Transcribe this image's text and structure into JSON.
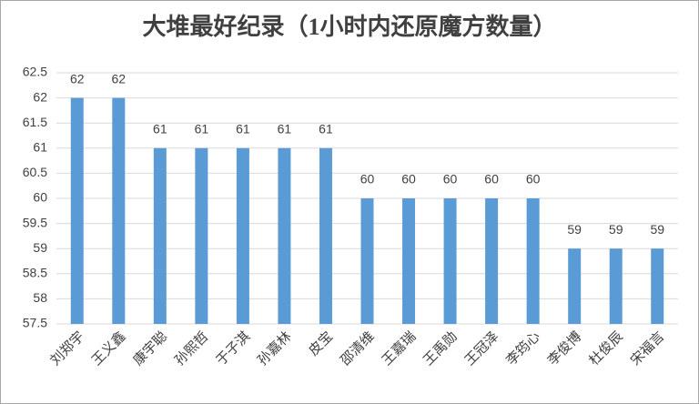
{
  "chart_data": {
    "type": "bar",
    "title": "大堆最好纪录（1小时内还原魔方数量）",
    "categories": [
      "刘郑宇",
      "王义鑫",
      "康宇聪",
      "孙熙哲",
      "于子淇",
      "孙嘉林",
      "皮宝",
      "邵清维",
      "王嘉瑞",
      "王禹勋",
      "王冠泽",
      "李筠心",
      "李俊博",
      "杜俊辰",
      "宋福言"
    ],
    "values": [
      62,
      62,
      61,
      61,
      61,
      61,
      61,
      60,
      60,
      60,
      60,
      60,
      59,
      59,
      59
    ],
    "color": "#5b9bd5",
    "ylim": [
      57.5,
      62.5
    ],
    "yticks": [
      57.5,
      58,
      58.5,
      59,
      59.5,
      60,
      60.5,
      61,
      61.5,
      62,
      62.5
    ],
    "grid": true
  }
}
